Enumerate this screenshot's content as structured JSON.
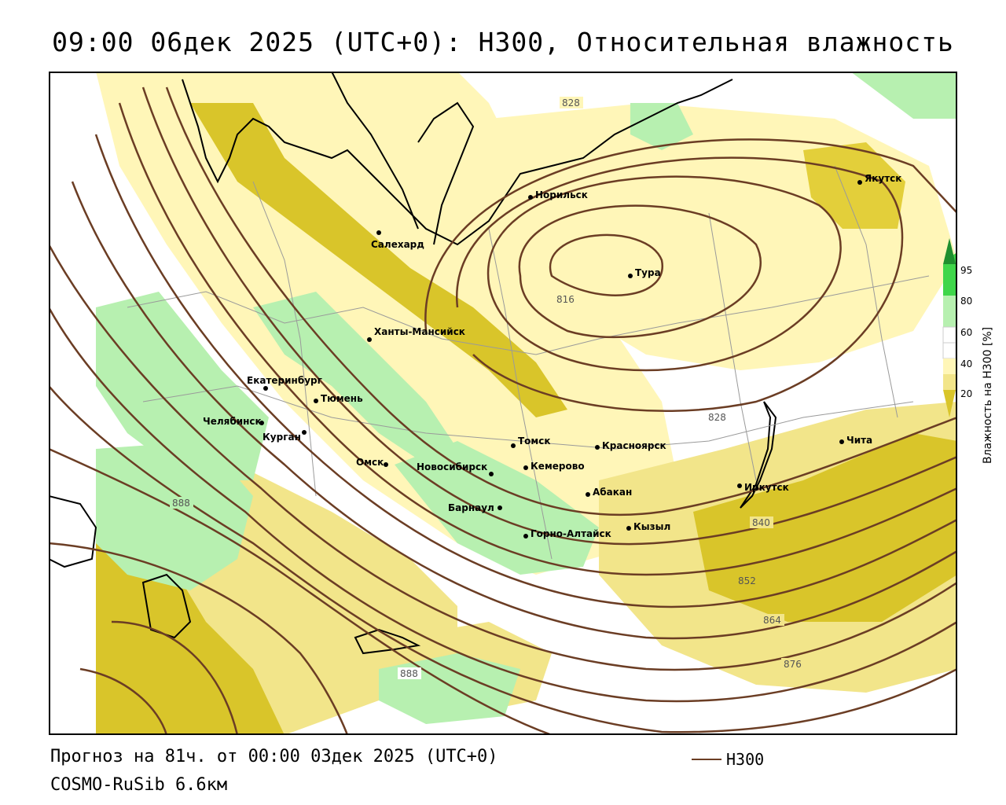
{
  "title": "09:00 06дек 2025 (UTC+0): H300, Относительная влажность",
  "footer": {
    "forecast": "Прогноз на 81ч. от 00:00 03дек 2025 (UTC+0)",
    "model": "COSMO-RuSib 6.6км"
  },
  "legend": {
    "line_label": "H300",
    "line_color": "#6b3d24"
  },
  "colorbar": {
    "label": "Влажность на H300 [%]",
    "ticks": [
      "95",
      "80",
      "60",
      "40",
      "20"
    ],
    "colors": {
      "dark_green": "#1f8f2f",
      "green": "#3fd64a",
      "light_green": "#b7f0b0",
      "white": "#ffffff",
      "light_yellow": "#fff6b8",
      "yellow": "#f2e58a",
      "olive": "#d9c52a"
    }
  },
  "cities": [
    {
      "name": "Якутск"
    },
    {
      "name": "Норильск"
    },
    {
      "name": "Салехард"
    },
    {
      "name": "Тура"
    },
    {
      "name": "Ханты-Мансийск"
    },
    {
      "name": "Екатеринбург"
    },
    {
      "name": "Тюмень"
    },
    {
      "name": "Челябинск"
    },
    {
      "name": "Курган"
    },
    {
      "name": "Томск"
    },
    {
      "name": "Красноярск"
    },
    {
      "name": "Чита"
    },
    {
      "name": "Омск"
    },
    {
      "name": "Новосибирск"
    },
    {
      "name": "Кемерово"
    },
    {
      "name": "Абакан"
    },
    {
      "name": "Иркутск"
    },
    {
      "name": "Барнаул"
    },
    {
      "name": "Кызыл"
    },
    {
      "name": "Горно-Алтайск"
    }
  ],
  "contour_labels": [
    "828",
    "816",
    "828",
    "840",
    "852",
    "864",
    "876",
    "888",
    "888"
  ]
}
